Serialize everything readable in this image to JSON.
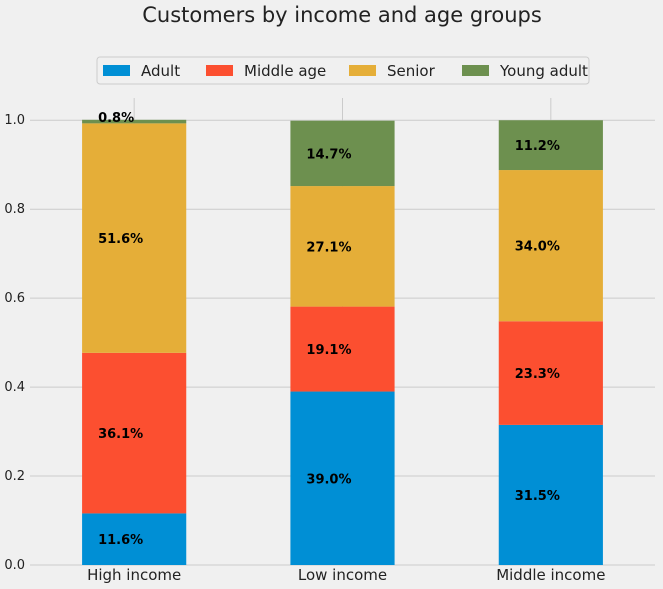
{
  "chart_data": {
    "type": "bar",
    "stacked": true,
    "title": "Customers by income and age groups",
    "xlabel": "",
    "ylabel": "",
    "ylim": [
      0,
      1.05
    ],
    "yticks": [
      "0.0",
      "0.2",
      "0.4",
      "0.6",
      "0.8",
      "1.0"
    ],
    "grid": true,
    "legend_position": "top-center",
    "categories": [
      "High income",
      "Low income",
      "Middle income"
    ],
    "series": [
      {
        "name": "Adult",
        "color": "#008fd5",
        "values": [
          0.116,
          0.39,
          0.315
        ],
        "labels": [
          "11.6%",
          "39.0%",
          "31.5%"
        ]
      },
      {
        "name": "Middle age",
        "color": "#fc4f30",
        "values": [
          0.361,
          0.191,
          0.233
        ],
        "labels": [
          "36.1%",
          "19.1%",
          "23.3%"
        ]
      },
      {
        "name": "Senior",
        "color": "#e5ae38",
        "values": [
          0.516,
          0.271,
          0.34
        ],
        "labels": [
          "51.6%",
          "27.1%",
          "34.0%"
        ]
      },
      {
        "name": "Young adult",
        "color": "#6d904f",
        "values": [
          0.008,
          0.147,
          0.112
        ],
        "labels": [
          "0.8%",
          "14.7%",
          "11.2%"
        ]
      }
    ]
  }
}
